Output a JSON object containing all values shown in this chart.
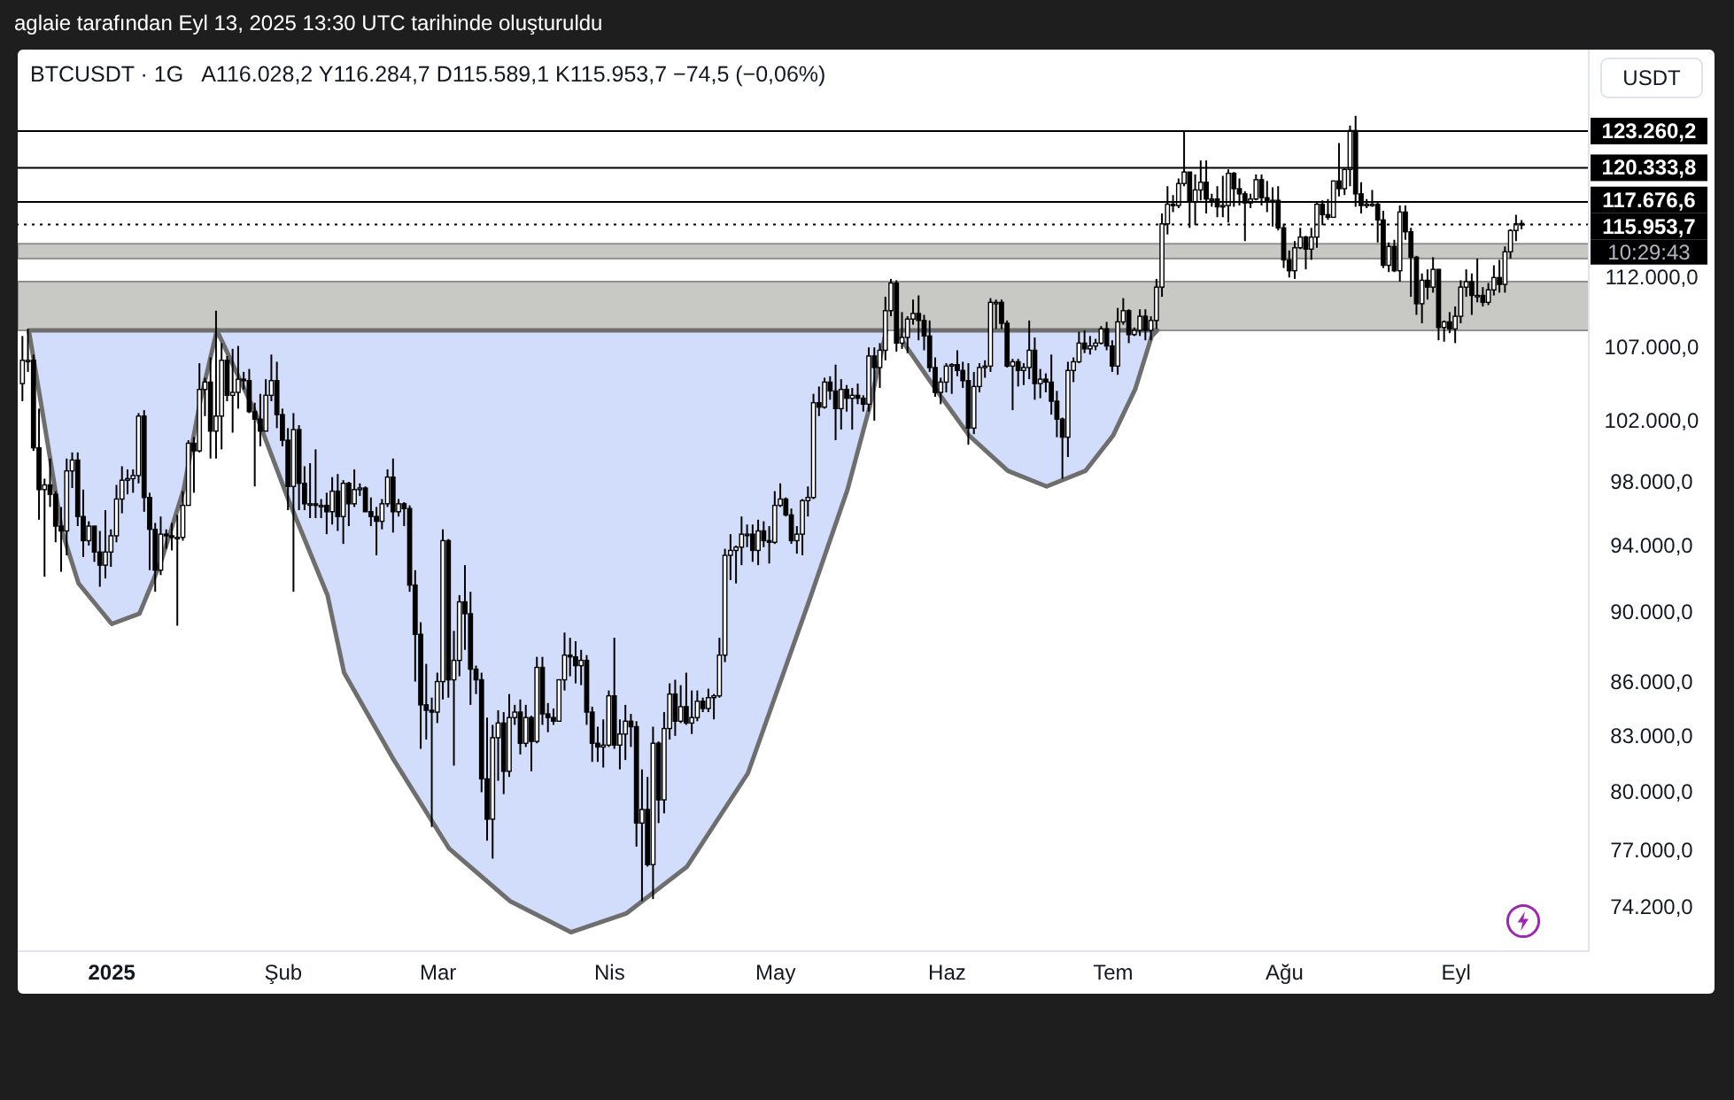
{
  "chart_data": {
    "type": "candlestick",
    "title": "BTCUSDT · 1G",
    "subtitle": "A116.028,2 Y116.284,7 D115.589,1 K115.953,7 −74,5 (−0,06%)",
    "annotations": [
      "aglaie tarafından Eyl 13, 2025 13:30 UTC tarihinde oluşturuldu",
      "USDT",
      "10:29:43"
    ],
    "log": true,
    "xlim": [
      "2024-12-15",
      "2025-09-25"
    ],
    "xticks": [
      {
        "value": "2025-01-01",
        "label": "2025"
      },
      {
        "value": "2025-02-01",
        "label": "Şub"
      },
      {
        "value": "2025-03-01",
        "label": "Mar"
      },
      {
        "value": "2025-04-01",
        "label": "Nis"
      },
      {
        "value": "2025-05-01",
        "label": "May"
      },
      {
        "value": "2025-06-01",
        "label": "Haz"
      },
      {
        "value": "2025-07-01",
        "label": "Tem"
      },
      {
        "value": "2025-08-01",
        "label": "Ağu"
      },
      {
        "value": "2025-09-01",
        "label": "Eyl"
      }
    ],
    "ylim": [
      72100,
      130000
    ],
    "yticks": [
      {
        "value": 74200,
        "label": "74.200,0"
      },
      {
        "value": 77000,
        "label": "77.000,0"
      },
      {
        "value": 80000,
        "label": "80.000,0"
      },
      {
        "value": 83000,
        "label": "83.000,0"
      },
      {
        "value": 86000,
        "label": "86.000,0"
      },
      {
        "value": 90000,
        "label": "90.000,0"
      },
      {
        "value": 94000,
        "label": "94.000,0"
      },
      {
        "value": 98000,
        "label": "98.000,0"
      },
      {
        "value": 102000,
        "label": "102.000,0"
      },
      {
        "value": 107000,
        "label": "107.000,0"
      },
      {
        "value": 112000,
        "label": "112.000,0"
      }
    ],
    "bands": [
      {
        "axis": "y",
        "from": 108200,
        "to": 111700,
        "color": "#c8c9c4"
      },
      {
        "axis": "y",
        "from": 113400,
        "to": 114500,
        "color": "#c8c9c4"
      }
    ],
    "ref_lines": [
      {
        "axis": "y",
        "value": 123260.2,
        "label": "123.260,2",
        "color": "#000000"
      },
      {
        "axis": "y",
        "value": 120333.8,
        "label": "120.333,8",
        "color": "#000000"
      },
      {
        "axis": "y",
        "value": 117676.6,
        "label": "117.676,6",
        "color": "#000000"
      },
      {
        "axis": "y",
        "value": 115953.7,
        "label": "115.953,7",
        "color": "#000000",
        "line_style": "dotted"
      }
    ],
    "series": [
      {
        "color": "#000000",
        "x": [
          "2024-12-16",
          "2024-12-17",
          "2024-12-18",
          "2024-12-19",
          "2024-12-20",
          "2024-12-21",
          "2024-12-22",
          "2024-12-23",
          "2024-12-24",
          "2024-12-25",
          "2024-12-26",
          "2024-12-27",
          "2024-12-28",
          "2024-12-29",
          "2024-12-30",
          "2024-12-31",
          "2025-01-01",
          "2025-01-02",
          "2025-01-03",
          "2025-01-04",
          "2025-01-05",
          "2025-01-06",
          "2025-01-07",
          "2025-01-08",
          "2025-01-09",
          "2025-01-10",
          "2025-01-11",
          "2025-01-12",
          "2025-01-13",
          "2025-01-14",
          "2025-01-15",
          "2025-01-16",
          "2025-01-17",
          "2025-01-18",
          "2025-01-19",
          "2025-01-20",
          "2025-01-21",
          "2025-01-22",
          "2025-01-23",
          "2025-01-24",
          "2025-01-25",
          "2025-01-26",
          "2025-01-27",
          "2025-01-28",
          "2025-01-29",
          "2025-01-30",
          "2025-01-31",
          "2025-02-01",
          "2025-02-02",
          "2025-02-03",
          "2025-02-04",
          "2025-02-05",
          "2025-02-06",
          "2025-02-07",
          "2025-02-08",
          "2025-02-09",
          "2025-02-10",
          "2025-02-11",
          "2025-02-12",
          "2025-02-13",
          "2025-02-14",
          "2025-02-15",
          "2025-02-16",
          "2025-02-17",
          "2025-02-18",
          "2025-02-19",
          "2025-02-20",
          "2025-02-21",
          "2025-02-22",
          "2025-02-23",
          "2025-02-24",
          "2025-02-25",
          "2025-02-26",
          "2025-02-27",
          "2025-02-28",
          "2025-03-01",
          "2025-03-02",
          "2025-03-03",
          "2025-03-04",
          "2025-03-05",
          "2025-03-06",
          "2025-03-07",
          "2025-03-08",
          "2025-03-09",
          "2025-03-10",
          "2025-03-11",
          "2025-03-12",
          "2025-03-13",
          "2025-03-14",
          "2025-03-15",
          "2025-03-16",
          "2025-03-17",
          "2025-03-18",
          "2025-03-19",
          "2025-03-20",
          "2025-03-21",
          "2025-03-22",
          "2025-03-23",
          "2025-03-24",
          "2025-03-25",
          "2025-03-26",
          "2025-03-27",
          "2025-03-28",
          "2025-03-29",
          "2025-03-30",
          "2025-03-31",
          "2025-04-01",
          "2025-04-02",
          "2025-04-03",
          "2025-04-04",
          "2025-04-05",
          "2025-04-06",
          "2025-04-07",
          "2025-04-08",
          "2025-04-09",
          "2025-04-10",
          "2025-04-11",
          "2025-04-12",
          "2025-04-13",
          "2025-04-14",
          "2025-04-15",
          "2025-04-16",
          "2025-04-17",
          "2025-04-18",
          "2025-04-19",
          "2025-04-20",
          "2025-04-21",
          "2025-04-22",
          "2025-04-23",
          "2025-04-24",
          "2025-04-25",
          "2025-04-26",
          "2025-04-27",
          "2025-04-28",
          "2025-04-29",
          "2025-04-30",
          "2025-05-01",
          "2025-05-02",
          "2025-05-03",
          "2025-05-04",
          "2025-05-05",
          "2025-05-06",
          "2025-05-07",
          "2025-05-08",
          "2025-05-09",
          "2025-05-10",
          "2025-05-11",
          "2025-05-12",
          "2025-05-13",
          "2025-05-14",
          "2025-05-15",
          "2025-05-16",
          "2025-05-17",
          "2025-05-18",
          "2025-05-19",
          "2025-05-20",
          "2025-05-21",
          "2025-05-22",
          "2025-05-23",
          "2025-05-24",
          "2025-05-25",
          "2025-05-26",
          "2025-05-27",
          "2025-05-28",
          "2025-05-29",
          "2025-05-30",
          "2025-05-31",
          "2025-06-01",
          "2025-06-02",
          "2025-06-03",
          "2025-06-04",
          "2025-06-05",
          "2025-06-06",
          "2025-06-07",
          "2025-06-08",
          "2025-06-09",
          "2025-06-10",
          "2025-06-11",
          "2025-06-12",
          "2025-06-13",
          "2025-06-14",
          "2025-06-15",
          "2025-06-16",
          "2025-06-17",
          "2025-06-18",
          "2025-06-19",
          "2025-06-20",
          "2025-06-21",
          "2025-06-22",
          "2025-06-23",
          "2025-06-24",
          "2025-06-25",
          "2025-06-26",
          "2025-06-27",
          "2025-06-28",
          "2025-06-29",
          "2025-06-30",
          "2025-07-01",
          "2025-07-02",
          "2025-07-03",
          "2025-07-04",
          "2025-07-05",
          "2025-07-06",
          "2025-07-07",
          "2025-07-08",
          "2025-07-09",
          "2025-07-10",
          "2025-07-11",
          "2025-07-12",
          "2025-07-13",
          "2025-07-14",
          "2025-07-15",
          "2025-07-16",
          "2025-07-17",
          "2025-07-18",
          "2025-07-19",
          "2025-07-20",
          "2025-07-21",
          "2025-07-22",
          "2025-07-23",
          "2025-07-24",
          "2025-07-25",
          "2025-07-26",
          "2025-07-27",
          "2025-07-28",
          "2025-07-29",
          "2025-07-30",
          "2025-07-31",
          "2025-08-01",
          "2025-08-02",
          "2025-08-03",
          "2025-08-04",
          "2025-08-05",
          "2025-08-06",
          "2025-08-07",
          "2025-08-08",
          "2025-08-09",
          "2025-08-10",
          "2025-08-11",
          "2025-08-12",
          "2025-08-13",
          "2025-08-14",
          "2025-08-15",
          "2025-08-16",
          "2025-08-17",
          "2025-08-18",
          "2025-08-19",
          "2025-08-20",
          "2025-08-21",
          "2025-08-22",
          "2025-08-23",
          "2025-08-24",
          "2025-08-25",
          "2025-08-26",
          "2025-08-27",
          "2025-08-28",
          "2025-08-29",
          "2025-08-30",
          "2025-08-31",
          "2025-09-01",
          "2025-09-02",
          "2025-09-03",
          "2025-09-04",
          "2025-09-05",
          "2025-09-06",
          "2025-09-07",
          "2025-09-08",
          "2025-09-09",
          "2025-09-10",
          "2025-09-11",
          "2025-09-12",
          "2025-09-13"
        ],
        "ohlc": [
          [
            104500,
            107800,
            103300,
            106100
          ],
          [
            106100,
            108300,
            105300,
            106100
          ],
          [
            106100,
            106500,
            100000,
            100200
          ],
          [
            100200,
            102800,
            95600,
            97500
          ],
          [
            97500,
            98200,
            92100,
            97800
          ],
          [
            97800,
            99500,
            96400,
            97200
          ],
          [
            97200,
            97400,
            94200,
            95200
          ],
          [
            95200,
            96400,
            92400,
            94900
          ],
          [
            94900,
            99500,
            93400,
            98700
          ],
          [
            98700,
            99900,
            97600,
            99400
          ],
          [
            99400,
            99900,
            95200,
            95800
          ],
          [
            95800,
            97500,
            93300,
            94300
          ],
          [
            94300,
            95500,
            94000,
            95200
          ],
          [
            95200,
            95200,
            93000,
            93600
          ],
          [
            93600,
            94900,
            91500,
            92800
          ],
          [
            92800,
            96200,
            92000,
            93600
          ],
          [
            93600,
            95000,
            92700,
            94600
          ],
          [
            94600,
            97800,
            94200,
            96900
          ],
          [
            96900,
            99000,
            96000,
            98100
          ],
          [
            98100,
            98800,
            97200,
            98200
          ],
          [
            98200,
            98800,
            97300,
            98400
          ],
          [
            98400,
            102500,
            97900,
            102300
          ],
          [
            102300,
            102700,
            96100,
            97000
          ],
          [
            97000,
            97300,
            92500,
            95000
          ],
          [
            95000,
            95400,
            91200,
            92500
          ],
          [
            92500,
            95800,
            92200,
            94700
          ],
          [
            94700,
            95000,
            93800,
            94600
          ],
          [
            94600,
            95400,
            93700,
            94500
          ],
          [
            94500,
            95900,
            89200,
            94500
          ],
          [
            94500,
            97400,
            94300,
            96500
          ],
          [
            96500,
            100700,
            96500,
            100500
          ],
          [
            100500,
            100900,
            97300,
            100000
          ],
          [
            100000,
            105900,
            99900,
            104100
          ],
          [
            104100,
            104900,
            102300,
            104600
          ],
          [
            104600,
            106300,
            99500,
            101300
          ],
          [
            101300,
            109600,
            99500,
            102300
          ],
          [
            102300,
            107300,
            100100,
            106100
          ],
          [
            106100,
            106400,
            103300,
            103700
          ],
          [
            103700,
            106900,
            101200,
            103900
          ],
          [
            103900,
            107100,
            102800,
            104800
          ],
          [
            104800,
            105300,
            104100,
            104700
          ],
          [
            104700,
            105500,
            102500,
            102600
          ],
          [
            102600,
            103200,
            97700,
            102100
          ],
          [
            102100,
            103800,
            100300,
            101300
          ],
          [
            101300,
            104800,
            101300,
            103700
          ],
          [
            103700,
            106500,
            103300,
            104700
          ],
          [
            104700,
            106000,
            101500,
            102400
          ],
          [
            102400,
            102800,
            100300,
            100700
          ],
          [
            100700,
            101500,
            96200,
            97700
          ],
          [
            97700,
            102500,
            91200,
            101400
          ],
          [
            101400,
            101700,
            96200,
            97900
          ],
          [
            97900,
            99000,
            96200,
            96600
          ],
          [
            96600,
            99200,
            95700,
            96600
          ],
          [
            96600,
            100100,
            95700,
            96500
          ],
          [
            96500,
            96900,
            95700,
            96500
          ],
          [
            96500,
            97300,
            94700,
            96100
          ],
          [
            96100,
            98300,
            95300,
            97400
          ],
          [
            97400,
            98500,
            94900,
            95800
          ],
          [
            95800,
            98100,
            94100,
            97900
          ],
          [
            97900,
            98000,
            95200,
            96600
          ],
          [
            96600,
            98800,
            96400,
            97500
          ],
          [
            97500,
            97900,
            97100,
            97600
          ],
          [
            97600,
            97700,
            96100,
            96100
          ],
          [
            96100,
            97000,
            95200,
            95800
          ],
          [
            95800,
            96400,
            93400,
            95500
          ],
          [
            95500,
            96900,
            95000,
            96600
          ],
          [
            96600,
            98800,
            96400,
            98300
          ],
          [
            98300,
            99500,
            94800,
            96100
          ],
          [
            96100,
            96900,
            95800,
            96600
          ],
          [
            96600,
            96700,
            95200,
            96300
          ],
          [
            96300,
            96500,
            91200,
            91600
          ],
          [
            91600,
            92500,
            86000,
            88700
          ],
          [
            88700,
            89400,
            82300,
            84700
          ],
          [
            84700,
            87000,
            82800,
            84400
          ],
          [
            84400,
            85100,
            78200,
            84300
          ],
          [
            84300,
            86500,
            83700,
            86000
          ],
          [
            86000,
            95000,
            85000,
            94300
          ],
          [
            94300,
            94400,
            85100,
            86100
          ],
          [
            86100,
            88900,
            81400,
            87200
          ],
          [
            87200,
            91000,
            86300,
            90600
          ],
          [
            90600,
            92800,
            87800,
            89900
          ],
          [
            89900,
            91200,
            84700,
            86700
          ],
          [
            86700,
            86900,
            85300,
            86100
          ],
          [
            86100,
            86500,
            80000,
            80700
          ],
          [
            80700,
            84000,
            77500,
            78600
          ],
          [
            78600,
            83600,
            76600,
            82900
          ],
          [
            82900,
            84400,
            80600,
            83700
          ],
          [
            83700,
            84300,
            79900,
            81100
          ],
          [
            81100,
            85300,
            80800,
            84000
          ],
          [
            84000,
            84700,
            83600,
            84300
          ],
          [
            84300,
            85000,
            82000,
            82600
          ],
          [
            82600,
            84700,
            82400,
            84000
          ],
          [
            84000,
            84100,
            81100,
            82700
          ],
          [
            82700,
            87400,
            82600,
            86800
          ],
          [
            86800,
            87400,
            83600,
            84200
          ],
          [
            84200,
            84800,
            83200,
            84000
          ],
          [
            84000,
            84500,
            83600,
            83800
          ],
          [
            83800,
            86100,
            83800,
            86100
          ],
          [
            86100,
            88800,
            85500,
            87500
          ],
          [
            87500,
            88500,
            86300,
            87400
          ],
          [
            87400,
            88300,
            85900,
            86900
          ],
          [
            86900,
            87800,
            85800,
            87200
          ],
          [
            87200,
            87500,
            83600,
            84300
          ],
          [
            84300,
            84600,
            81600,
            82600
          ],
          [
            82600,
            83500,
            81600,
            82400
          ],
          [
            82400,
            83900,
            81300,
            82500
          ],
          [
            82500,
            85500,
            82400,
            85200
          ],
          [
            85200,
            88500,
            82300,
            82500
          ],
          [
            82500,
            83900,
            81200,
            83100
          ],
          [
            83100,
            84700,
            81700,
            83800
          ],
          [
            83800,
            84200,
            82400,
            83500
          ],
          [
            83500,
            83800,
            77200,
            78400
          ],
          [
            78400,
            81200,
            74500,
            79100
          ],
          [
            79100,
            80800,
            76200,
            76300
          ],
          [
            76300,
            83500,
            74600,
            82600
          ],
          [
            82600,
            82700,
            78400,
            79600
          ],
          [
            79600,
            84300,
            78900,
            83400
          ],
          [
            83400,
            85900,
            82800,
            85300
          ],
          [
            85300,
            86100,
            83000,
            83800
          ],
          [
            83800,
            85800,
            83700,
            84600
          ],
          [
            84600,
            86500,
            83600,
            83700
          ],
          [
            83700,
            85500,
            83100,
            84000
          ],
          [
            84000,
            85500,
            83800,
            84900
          ],
          [
            84900,
            85100,
            84300,
            84500
          ],
          [
            84500,
            85600,
            84300,
            85100
          ],
          [
            85100,
            85300,
            83900,
            85200
          ],
          [
            85200,
            88500,
            85100,
            87500
          ],
          [
            87500,
            93800,
            87100,
            93400
          ],
          [
            93400,
            94700,
            91900,
            93700
          ],
          [
            93700,
            94000,
            91700,
            93900
          ],
          [
            93900,
            95800,
            92800,
            94700
          ],
          [
            94700,
            95300,
            93900,
            94700
          ],
          [
            94700,
            95300,
            93000,
            93700
          ],
          [
            93700,
            95600,
            92800,
            94900
          ],
          [
            94900,
            95500,
            93900,
            94300
          ],
          [
            94300,
            95200,
            92900,
            94200
          ],
          [
            94200,
            97400,
            94100,
            96500
          ],
          [
            96500,
            97900,
            96400,
            96900
          ],
          [
            96900,
            97000,
            95800,
            95900
          ],
          [
            95900,
            96300,
            94100,
            94300
          ],
          [
            94300,
            95200,
            93500,
            94700
          ],
          [
            94700,
            96900,
            93400,
            96800
          ],
          [
            96800,
            97700,
            95800,
            97000
          ],
          [
            97000,
            103800,
            96900,
            103200
          ],
          [
            103200,
            104300,
            102300,
            102900
          ],
          [
            102900,
            104900,
            102800,
            104600
          ],
          [
            104600,
            105000,
            103400,
            104000
          ],
          [
            104000,
            105800,
            100700,
            102800
          ],
          [
            102800,
            104800,
            101400,
            104100
          ],
          [
            104100,
            104400,
            102600,
            103500
          ],
          [
            103500,
            104200,
            101400,
            103700
          ],
          [
            103700,
            104500,
            103100,
            103500
          ],
          [
            103500,
            103700,
            102600,
            103100
          ],
          [
            103100,
            107000,
            102600,
            106400
          ],
          [
            106400,
            107000,
            102000,
            105600
          ],
          [
            105600,
            107300,
            104200,
            106800
          ],
          [
            106800,
            110600,
            106100,
            109600
          ],
          [
            109600,
            111900,
            109200,
            111600
          ],
          [
            111600,
            111800,
            106700,
            107300
          ],
          [
            107300,
            109500,
            106900,
            107700
          ],
          [
            107700,
            109200,
            106600,
            109000
          ],
          [
            109000,
            110400,
            108600,
            109400
          ],
          [
            109400,
            110700,
            107500,
            108900
          ],
          [
            108900,
            109300,
            106800,
            107800
          ],
          [
            107800,
            108900,
            105300,
            105600
          ],
          [
            105600,
            106300,
            103600,
            103900
          ],
          [
            103900,
            104900,
            103100,
            104600
          ],
          [
            104600,
            105900,
            103900,
            105700
          ],
          [
            105700,
            105900,
            103800,
            105800
          ],
          [
            105800,
            106800,
            105000,
            105400
          ],
          [
            105400,
            106000,
            104200,
            104700
          ],
          [
            104700,
            105900,
            100400,
            101500
          ],
          [
            101500,
            105300,
            101100,
            104300
          ],
          [
            104300,
            105900,
            103900,
            105600
          ],
          [
            105600,
            106100,
            104900,
            105700
          ],
          [
            105700,
            110500,
            105300,
            110200
          ],
          [
            110200,
            110400,
            108300,
            110200
          ],
          [
            110200,
            110400,
            108300,
            108700
          ],
          [
            108700,
            108900,
            105600,
            105700
          ],
          [
            105700,
            106200,
            102700,
            106000
          ],
          [
            106000,
            106200,
            104300,
            105400
          ],
          [
            105400,
            105900,
            104400,
            105600
          ],
          [
            105600,
            108900,
            104800,
            106800
          ],
          [
            106800,
            107700,
            103400,
            104500
          ],
          [
            104500,
            105500,
            103500,
            104800
          ],
          [
            104800,
            105200,
            103900,
            104600
          ],
          [
            104600,
            106500,
            102400,
            103300
          ],
          [
            103300,
            104000,
            100900,
            102100
          ],
          [
            102100,
            102200,
            98200,
            100900
          ],
          [
            100900,
            106000,
            99600,
            105400
          ],
          [
            105400,
            106300,
            104600,
            106000
          ],
          [
            106000,
            108100,
            105900,
            107300
          ],
          [
            107300,
            108200,
            106600,
            106900
          ],
          [
            106900,
            107800,
            106500,
            107100
          ],
          [
            107100,
            107600,
            106800,
            107300
          ],
          [
            107300,
            108500,
            107200,
            108300
          ],
          [
            108300,
            108800,
            106800,
            107100
          ],
          [
            107100,
            107500,
            105300,
            105700
          ],
          [
            105700,
            109800,
            105100,
            108800
          ],
          [
            108800,
            110500,
            108600,
            109600
          ],
          [
            109600,
            109700,
            107300,
            107900
          ],
          [
            107900,
            108400,
            107800,
            108200
          ],
          [
            108200,
            109700,
            107800,
            109200
          ],
          [
            109200,
            109700,
            107500,
            108200
          ],
          [
            108200,
            109200,
            107500,
            108900
          ],
          [
            108900,
            111900,
            108300,
            111300
          ],
          [
            111300,
            116800,
            110600,
            116000
          ],
          [
            116000,
            118900,
            115200,
            117500
          ],
          [
            117500,
            118200,
            116900,
            117400
          ],
          [
            117400,
            119500,
            117200,
            119100
          ],
          [
            119100,
            123200,
            118900,
            120000
          ],
          [
            120000,
            120000,
            115700,
            117700
          ],
          [
            117700,
            119800,
            115900,
            118600
          ],
          [
            118600,
            120900,
            117800,
            119200
          ],
          [
            119200,
            120900,
            116800,
            117900
          ],
          [
            117900,
            118300,
            117300,
            117900
          ],
          [
            117900,
            118900,
            116500,
            117300
          ],
          [
            117300,
            119700,
            116500,
            117400
          ],
          [
            117400,
            120200,
            116100,
            119900
          ],
          [
            119900,
            120000,
            117300,
            118700
          ],
          [
            118700,
            119500,
            117400,
            118300
          ],
          [
            118300,
            118500,
            114700,
            117600
          ],
          [
            117600,
            118300,
            117200,
            117900
          ],
          [
            117900,
            119800,
            117800,
            119400
          ],
          [
            119400,
            119800,
            117400,
            118000
          ],
          [
            118000,
            119300,
            116900,
            117800
          ],
          [
            117800,
            118800,
            115800,
            117800
          ],
          [
            117800,
            118900,
            115500,
            115700
          ],
          [
            115700,
            116000,
            112700,
            113300
          ],
          [
            113300,
            114000,
            112000,
            112500
          ],
          [
            112500,
            114700,
            111900,
            114200
          ],
          [
            114200,
            115700,
            114100,
            115000
          ],
          [
            115000,
            115100,
            112600,
            114100
          ],
          [
            114100,
            115700,
            113300,
            115000
          ],
          [
            115000,
            117600,
            114200,
            117500
          ],
          [
            117500,
            117800,
            115900,
            116700
          ],
          [
            116700,
            117900,
            116300,
            116500
          ],
          [
            116500,
            119300,
            116500,
            119300
          ],
          [
            119300,
            122300,
            118100,
            118700
          ],
          [
            118700,
            120300,
            118200,
            120200
          ],
          [
            120200,
            123700,
            118900,
            123300
          ],
          [
            123300,
            124500,
            117300,
            118300
          ],
          [
            118300,
            119200,
            116800,
            117400
          ],
          [
            117400,
            117900,
            117200,
            117500
          ],
          [
            117500,
            118600,
            117300,
            117500
          ],
          [
            117500,
            117600,
            114600,
            116300
          ],
          [
            116300,
            117000,
            112700,
            112900
          ],
          [
            112900,
            114600,
            112400,
            114300
          ],
          [
            114300,
            114800,
            112400,
            112500
          ],
          [
            112500,
            117400,
            111700,
            116900
          ],
          [
            116900,
            117400,
            114800,
            115400
          ],
          [
            115400,
            115700,
            110600,
            113500
          ],
          [
            113500,
            113600,
            109300,
            110100
          ],
          [
            110100,
            112300,
            108700,
            111800
          ],
          [
            111800,
            112600,
            110400,
            111300
          ],
          [
            111300,
            113500,
            110900,
            112600
          ],
          [
            112600,
            112600,
            107500,
            108400
          ],
          [
            108400,
            108900,
            107400,
            108800
          ],
          [
            108800,
            109500,
            108000,
            108300
          ],
          [
            108300,
            109900,
            107300,
            109200
          ],
          [
            109200,
            111800,
            108700,
            111300
          ],
          [
            111300,
            112600,
            110600,
            111700
          ],
          [
            111700,
            112300,
            109300,
            110700
          ],
          [
            110700,
            113400,
            110200,
            110700
          ],
          [
            110700,
            111300,
            109900,
            110200
          ],
          [
            110200,
            111600,
            110000,
            111100
          ],
          [
            111100,
            112900,
            110700,
            112000
          ],
          [
            112000,
            113300,
            110900,
            111500
          ],
          [
            111500,
            114300,
            110900,
            113900
          ],
          [
            113900,
            115600,
            113400,
            115500
          ],
          [
            115500,
            116700,
            114700,
            116000
          ],
          [
            116028.2,
            116284.7,
            115589.1,
            115953.7
          ]
        ]
      },
      {
        "type": "area",
        "color": "#d1ddfa",
        "x": [
          "2024-12-17",
          "2024-12-20",
          "2024-12-23",
          "2024-12-26",
          "2025-01-01",
          "2025-01-06",
          "2025-01-10",
          "2025-01-14",
          "2025-01-17",
          "2025-01-20"
        ],
        "values": [
          108200,
          101400,
          94900,
          91700,
          89300,
          89900,
          93100,
          97500,
          103300,
          108200
        ]
      },
      {
        "type": "area",
        "color": "#d1ddfa",
        "x": [
          "2025-01-20",
          "2025-01-27",
          "2025-02-02",
          "2025-02-09",
          "2025-02-12",
          "2025-02-21",
          "2025-03-03",
          "2025-03-14",
          "2025-03-25",
          "2025-04-04",
          "2025-04-15",
          "2025-04-26",
          "2025-05-07",
          "2025-05-14",
          "2025-05-18",
          "2025-05-21"
        ],
        "values": [
          108200,
          102500,
          96800,
          91000,
          86500,
          81700,
          77100,
          74500,
          73000,
          73900,
          76200,
          81000,
          90600,
          97500,
          102900,
          108200
        ]
      },
      {
        "type": "area",
        "color": "#d1ddfa",
        "x": [
          "2025-05-23",
          "2025-05-24",
          "2025-05-30",
          "2025-06-05",
          "2025-06-12",
          "2025-06-19",
          "2025-06-26",
          "2025-07-01",
          "2025-07-05",
          "2025-07-08",
          "2025-07-09"
        ],
        "values": [
          108200,
          107400,
          104100,
          101000,
          98700,
          97700,
          98700,
          101000,
          104100,
          107800,
          108200
        ]
      }
    ]
  }
}
